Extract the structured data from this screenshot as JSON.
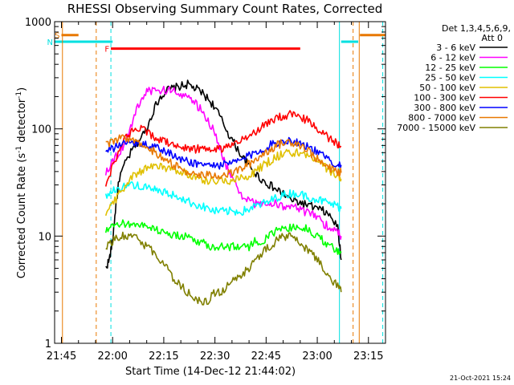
{
  "chart_data": {
    "type": "line",
    "title": "RHESSI Observing Summary Count Rates, Corrected",
    "xlabel": "Start Time (14-Dec-12 21:44:02)",
    "ylabel": "Corrected Count Rate (s",
    "ylabel_sup1": "-1",
    "ylabel_mid": " detector",
    "ylabel_sup2": "-1",
    "ylabel_end": ")",
    "x_unit": "minutes since 21:40",
    "xlim": [
      3,
      100
    ],
    "ylim": [
      1,
      1000
    ],
    "yscale": "log",
    "x_ticks": [
      {
        "v": 5,
        "label": "21:45"
      },
      {
        "v": 20,
        "label": "22:00"
      },
      {
        "v": 35,
        "label": "22:15"
      },
      {
        "v": 50,
        "label": "22:30"
      },
      {
        "v": 65,
        "label": "22:45"
      },
      {
        "v": 80,
        "label": "23:00"
      },
      {
        "v": 95,
        "label": "23:15"
      }
    ],
    "y_ticks": [
      {
        "v": 1,
        "label": "1"
      },
      {
        "v": 10,
        "label": "10"
      },
      {
        "v": 100,
        "label": "100"
      },
      {
        "v": 1000,
        "label": "1000"
      }
    ],
    "legend_header": [
      "Det 1,3,4,5,6,9,",
      "Att 0"
    ],
    "timestamp": "21-Oct-2021 15:24",
    "bars": [
      {
        "label": "S",
        "start": 5,
        "end": 10,
        "value": 750,
        "color": "#e87800"
      },
      {
        "label": "N",
        "start": 3,
        "end": 20,
        "value": 650,
        "color": "#00e0e0"
      },
      {
        "label": "F",
        "start": 19.5,
        "end": 75,
        "value": 560,
        "color": "#ff0000"
      },
      {
        "label": "",
        "start": 87,
        "end": 92,
        "value": 650,
        "color": "#00e0e0"
      },
      {
        "label": "",
        "start": 92.5,
        "end": 100,
        "value": 750,
        "color": "#e87800"
      }
    ],
    "vlines": [
      {
        "x": 5.3,
        "style": "solid",
        "color": "#e87800"
      },
      {
        "x": 15.2,
        "style": "dashed",
        "color": "#e87800"
      },
      {
        "x": 19.5,
        "style": "dashed",
        "color": "#00e0e0"
      },
      {
        "x": 86.5,
        "style": "solid",
        "color": "#00e0e0"
      },
      {
        "x": 90.5,
        "style": "dashed",
        "color": "#e87800"
      },
      {
        "x": 92.3,
        "style": "solid",
        "color": "#e87800"
      },
      {
        "x": 99.2,
        "style": "dashed",
        "color": "#00e0e0"
      }
    ],
    "series": [
      {
        "name": "3 - 6 keV",
        "color": "#000000",
        "x": [
          18,
          19,
          20,
          21,
          22,
          24,
          26,
          28,
          30,
          32,
          34,
          36,
          38,
          40,
          42,
          44,
          46,
          48,
          50,
          52,
          54,
          56,
          58,
          60,
          62,
          64,
          66,
          68,
          70,
          72,
          74,
          76,
          78,
          80,
          82,
          84,
          86,
          87
        ],
        "y": [
          5,
          6,
          9,
          20,
          35,
          50,
          65,
          80,
          100,
          150,
          200,
          230,
          240,
          250,
          260,
          240,
          220,
          190,
          160,
          120,
          90,
          70,
          55,
          45,
          38,
          33,
          30,
          27,
          25,
          22,
          21,
          20,
          19,
          18,
          17,
          15,
          12,
          6
        ]
      },
      {
        "name": "6 - 12 keV",
        "color": "#ff00ff",
        "x": [
          18,
          20,
          22,
          24,
          26,
          28,
          30,
          32,
          34,
          36,
          38,
          40,
          42,
          44,
          46,
          48,
          50,
          52,
          54,
          56,
          58,
          60,
          62,
          64,
          66,
          68,
          70,
          72,
          74,
          76,
          78,
          80,
          82,
          84,
          86,
          87
        ],
        "y": [
          40,
          50,
          60,
          80,
          120,
          180,
          220,
          230,
          225,
          230,
          225,
          215,
          200,
          175,
          150,
          120,
          90,
          60,
          40,
          30,
          24,
          21,
          20,
          20,
          20,
          20,
          19,
          19,
          18,
          17,
          16,
          15,
          13,
          12,
          11,
          10
        ]
      },
      {
        "name": "12 - 25 keV",
        "color": "#00ff00",
        "x": [
          18,
          20,
          22,
          24,
          26,
          28,
          30,
          32,
          34,
          36,
          38,
          40,
          42,
          44,
          46,
          48,
          50,
          52,
          54,
          56,
          58,
          60,
          62,
          64,
          66,
          68,
          70,
          72,
          74,
          76,
          78,
          80,
          82,
          84,
          86,
          87
        ],
        "y": [
          11,
          12,
          13,
          13,
          13,
          13,
          12,
          12,
          11,
          11,
          10,
          10,
          10,
          9,
          9,
          8,
          8,
          8,
          8,
          8,
          8,
          8,
          9,
          9,
          10,
          11,
          12,
          12,
          12,
          12,
          11,
          10,
          9,
          8,
          7,
          7
        ]
      },
      {
        "name": "25 - 50 keV",
        "color": "#00ffff",
        "x": [
          18,
          20,
          22,
          24,
          26,
          28,
          30,
          32,
          34,
          36,
          38,
          40,
          42,
          44,
          46,
          48,
          50,
          52,
          54,
          56,
          58,
          60,
          62,
          64,
          66,
          68,
          70,
          72,
          74,
          76,
          78,
          80,
          82,
          84,
          86,
          87
        ],
        "y": [
          24,
          26,
          28,
          30,
          30,
          29,
          28,
          27,
          26,
          25,
          24,
          23,
          21,
          20,
          19,
          18,
          17,
          17,
          17,
          17,
          17,
          18,
          19,
          20,
          21,
          23,
          24,
          25,
          25,
          24,
          23,
          22,
          21,
          20,
          19,
          18
        ]
      },
      {
        "name": "50 - 100 keV",
        "color": "#e0c000",
        "x": [
          18,
          20,
          22,
          24,
          26,
          28,
          30,
          32,
          34,
          36,
          38,
          40,
          42,
          44,
          46,
          48,
          50,
          52,
          54,
          56,
          58,
          60,
          62,
          64,
          66,
          68,
          70,
          72,
          74,
          76,
          78,
          80,
          82,
          84,
          86,
          87
        ],
        "y": [
          17,
          20,
          25,
          30,
          36,
          40,
          44,
          45,
          44,
          43,
          42,
          40,
          38,
          36,
          34,
          33,
          33,
          33,
          33,
          34,
          35,
          37,
          40,
          45,
          50,
          55,
          58,
          60,
          60,
          58,
          55,
          50,
          45,
          40,
          36,
          34
        ]
      },
      {
        "name": "100 - 300 keV",
        "color": "#ff0000",
        "x": [
          18,
          20,
          22,
          24,
          26,
          28,
          30,
          32,
          34,
          36,
          38,
          40,
          42,
          44,
          46,
          48,
          50,
          52,
          54,
          56,
          58,
          60,
          62,
          64,
          66,
          68,
          70,
          72,
          74,
          76,
          78,
          80,
          82,
          84,
          86,
          87
        ],
        "y": [
          30,
          45,
          65,
          85,
          95,
          100,
          95,
          85,
          80,
          75,
          70,
          68,
          66,
          65,
          65,
          65,
          65,
          66,
          68,
          72,
          78,
          85,
          95,
          105,
          115,
          125,
          132,
          135,
          133,
          125,
          115,
          100,
          90,
          80,
          72,
          68
        ]
      },
      {
        "name": "300 - 800 keV",
        "color": "#0000ff",
        "x": [
          18,
          20,
          22,
          24,
          26,
          28,
          30,
          32,
          34,
          36,
          38,
          40,
          42,
          44,
          46,
          48,
          50,
          52,
          54,
          56,
          58,
          60,
          62,
          64,
          66,
          68,
          70,
          72,
          74,
          76,
          78,
          80,
          82,
          84,
          86,
          87
        ],
        "y": [
          60,
          65,
          70,
          73,
          75,
          74,
          72,
          68,
          64,
          60,
          56,
          52,
          50,
          48,
          47,
          46,
          46,
          46,
          47,
          49,
          52,
          56,
          60,
          65,
          70,
          74,
          77,
          78,
          76,
          72,
          66,
          60,
          55,
          50,
          47,
          46
        ]
      },
      {
        "name": "800 - 7000 keV",
        "color": "#e87800",
        "x": [
          18,
          20,
          22,
          24,
          26,
          28,
          30,
          32,
          34,
          36,
          38,
          40,
          42,
          44,
          46,
          48,
          50,
          52,
          54,
          56,
          58,
          60,
          62,
          64,
          66,
          68,
          70,
          72,
          74,
          76,
          78,
          80,
          82,
          84,
          86,
          87
        ],
        "y": [
          70,
          75,
          80,
          82,
          80,
          75,
          68,
          62,
          56,
          50,
          46,
          43,
          40,
          38,
          37,
          37,
          37,
          37,
          38,
          40,
          43,
          47,
          52,
          58,
          64,
          70,
          74,
          76,
          74,
          68,
          60,
          52,
          46,
          42,
          40,
          39
        ]
      },
      {
        "name": "7000 - 15000 keV",
        "color": "#808000",
        "x": [
          18,
          20,
          22,
          24,
          26,
          28,
          30,
          32,
          34,
          36,
          38,
          40,
          42,
          44,
          46,
          48,
          50,
          52,
          54,
          56,
          58,
          60,
          62,
          64,
          66,
          68,
          70,
          72,
          74,
          76,
          78,
          80,
          82,
          84,
          86,
          87
        ],
        "y": [
          8,
          9,
          10,
          10,
          10,
          9,
          8,
          7,
          6,
          5,
          4,
          3.5,
          3,
          2.5,
          2.5,
          2.5,
          3,
          3,
          3.5,
          4,
          4.5,
          5,
          6,
          7,
          8,
          9,
          10,
          10,
          9,
          8,
          7,
          6,
          5,
          4,
          3.5,
          3
        ]
      }
    ]
  }
}
